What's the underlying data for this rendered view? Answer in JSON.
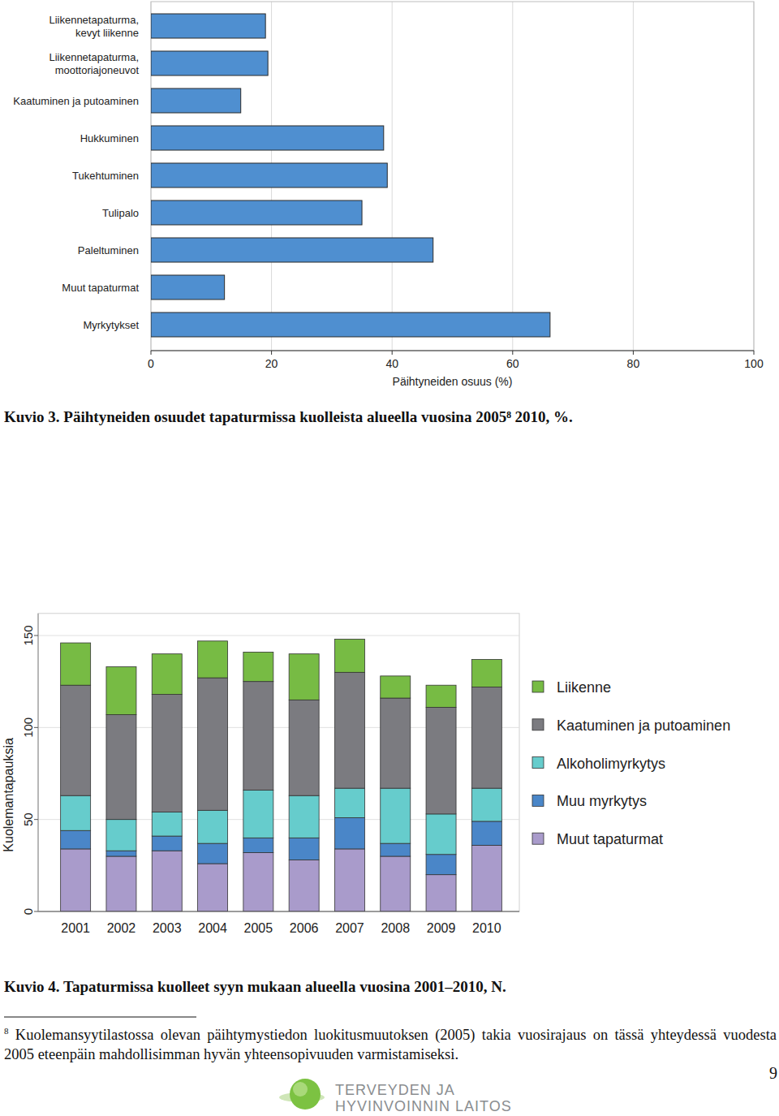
{
  "chart_data": [
    {
      "type": "bar",
      "orientation": "horizontal",
      "grid": true,
      "title": "Kuvio 3. Päihtyneiden osuudet tapaturmissa kuolleista alueella vuosina 2005⁸ 2010, %.",
      "x_label": "Päihtyneiden osuus (%)",
      "categories": [
        "Liikennetapaturma, kevyt liikenne",
        "Liikennetapaturma, moottoriajoneuvot",
        "Kaatuminen ja putoaminen",
        "Hukkuminen",
        "Tukehtuminen",
        "Tulipalo",
        "Paleltuminen",
        "Muut tapaturmat",
        "Myrkytykset"
      ],
      "values": [
        19,
        19.4,
        14.9,
        38.6,
        39.2,
        35,
        46.8,
        12.2,
        66.2
      ],
      "color": "#4f8fd0",
      "xlim": [
        0,
        100
      ],
      "xticks": [
        0,
        20,
        40,
        60,
        80,
        100
      ]
    },
    {
      "type": "bar",
      "stacked": true,
      "grid": true,
      "legend": "right",
      "title": "Kuvio 4. Tapaturmissa kuolleet syyn mukaan alueella vuosina 2001–2010, N.",
      "y_label": "Kuolemantapauksia",
      "categories": [
        "2001",
        "2002",
        "2003",
        "2004",
        "2005",
        "2006",
        "2007",
        "2008",
        "2009",
        "2010"
      ],
      "series": [
        {
          "name": "Muut tapaturmat",
          "color": "#a99bcb",
          "values": [
            34,
            30,
            33,
            26,
            32,
            28,
            34,
            30,
            20,
            36
          ]
        },
        {
          "name": "Muu myrkytys",
          "color": "#4a86c8",
          "values": [
            10,
            3,
            8,
            11,
            8,
            12,
            17,
            7,
            11,
            13
          ]
        },
        {
          "name": "Alkoholimyrkytys",
          "color": "#66cccc",
          "values": [
            19,
            17,
            13,
            18,
            26,
            23,
            16,
            30,
            22,
            18
          ]
        },
        {
          "name": "Kaatuminen ja putoaminen",
          "color": "#7b7b80",
          "values": [
            60,
            57,
            64,
            72,
            59,
            52,
            63,
            49,
            58,
            55
          ]
        },
        {
          "name": "Liikenne",
          "color": "#77bb44",
          "values": [
            23,
            26,
            22,
            20,
            16,
            25,
            18,
            12,
            12,
            15
          ]
        }
      ],
      "ylim": [
        0,
        162
      ],
      "yticks": [
        0,
        50,
        100,
        150
      ]
    }
  ],
  "footnote": {
    "marker": "8",
    "text": "Kuolemansyytilastossa olevan päihtymystiedon luokitusmuutoksen (2005) takia vuosirajaus on tässä yhteydessä vuodesta 2005 eteenpäin mahdollisimman hyvän yhteensopivuuden varmistamiseksi."
  },
  "page_number": 9,
  "logo": [
    "TERVEYDEN JA",
    "HYVINVOINNIN LAITOS"
  ]
}
